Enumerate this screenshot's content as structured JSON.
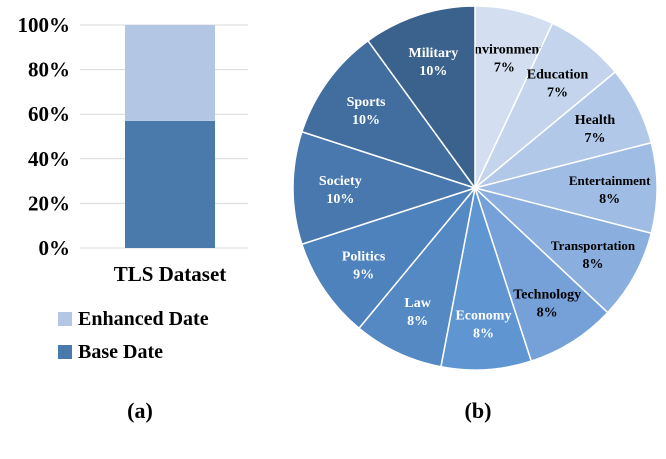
{
  "chart_data": [
    {
      "type": "bar",
      "stacked": true,
      "panel_label": "(a)",
      "categories": [
        "TLS Dataset"
      ],
      "series": [
        {
          "name": "Base Date",
          "values": [
            57
          ],
          "color": "#4a7aab"
        },
        {
          "name": "Enhanced Date",
          "values": [
            43
          ],
          "color": "#b3c7e5"
        }
      ],
      "yticks": [
        "0%",
        "20%",
        "40%",
        "60%",
        "80%",
        "100%"
      ],
      "ylim": [
        0,
        100
      ],
      "grid": true,
      "legend": "bottom"
    },
    {
      "type": "pie",
      "panel_label": "(b)",
      "slices": [
        {
          "label": "Environment",
          "value": 7,
          "text": "7%",
          "color": "#d3dff0"
        },
        {
          "label": "Education",
          "value": 7,
          "text": "7%",
          "color": "#c3d4ec"
        },
        {
          "label": "Health",
          "value": 7,
          "text": "7%",
          "color": "#b2c8e8"
        },
        {
          "label": "Entertainment",
          "value": 8,
          "text": "8%",
          "color": "#9fbce4"
        },
        {
          "label": "Transportation",
          "value": 8,
          "text": "8%",
          "color": "#8aaedd"
        },
        {
          "label": "Technology",
          "value": 8,
          "text": "8%",
          "color": "#76a1d8"
        },
        {
          "label": "Economy",
          "value": 8,
          "text": "8%",
          "color": "#5f95d0"
        },
        {
          "label": "Law",
          "value": 8,
          "text": "8%",
          "color": "#5589c4"
        },
        {
          "label": "Politics",
          "value": 9,
          "text": "9%",
          "color": "#4e82bc"
        },
        {
          "label": "Society",
          "value": 10,
          "text": "10%",
          "color": "#4878ae"
        },
        {
          "label": "Sports",
          "value": 10,
          "text": "10%",
          "color": "#416e9f"
        },
        {
          "label": "Military",
          "value": 10,
          "text": "10%",
          "color": "#3a628c"
        }
      ]
    }
  ]
}
